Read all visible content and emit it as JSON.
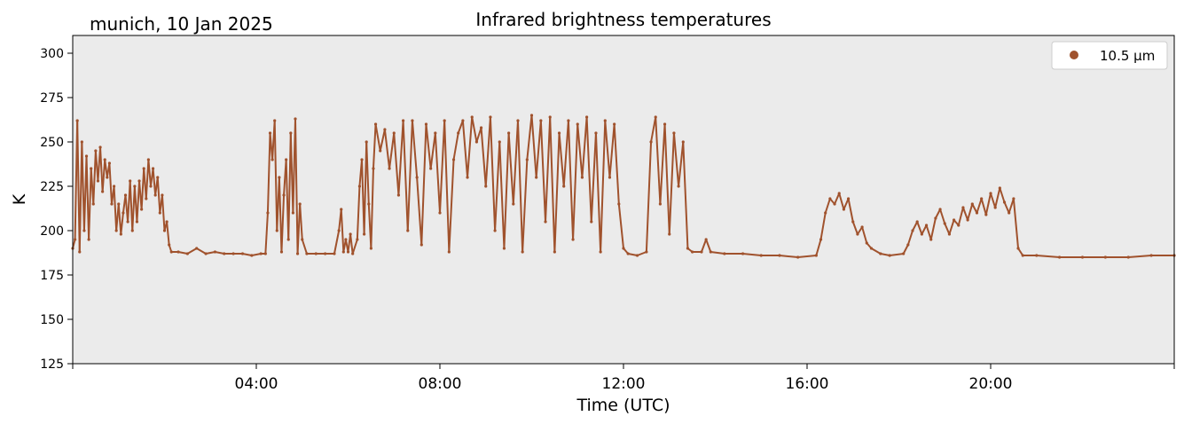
{
  "site_date": "munich, 10 Jan 2025",
  "chart_data": {
    "type": "scatter",
    "title": "Infrared brightness temperatures",
    "xlabel": "Time (UTC)",
    "ylabel": "K",
    "x_unit": "hours UTC",
    "xlim": [
      0,
      24
    ],
    "ylim": [
      125,
      310
    ],
    "x_ticks": [
      4,
      8,
      12,
      16,
      20
    ],
    "x_tick_labels": [
      "04:00",
      "08:00",
      "12:00",
      "16:00",
      "20:00"
    ],
    "y_ticks": [
      125,
      150,
      175,
      200,
      225,
      250,
      275,
      300
    ],
    "y_tick_labels": [
      "125",
      "150",
      "175",
      "200",
      "225",
      "250",
      "275",
      "300"
    ],
    "grid": false,
    "background": "#ebebeb",
    "legend_position": "top-right",
    "series": [
      {
        "name": "10.5 µm",
        "color": "#a0522d",
        "points": [
          [
            0.0,
            190
          ],
          [
            0.05,
            195
          ],
          [
            0.1,
            262
          ],
          [
            0.15,
            188
          ],
          [
            0.2,
            250
          ],
          [
            0.25,
            200
          ],
          [
            0.3,
            242
          ],
          [
            0.35,
            195
          ],
          [
            0.4,
            235
          ],
          [
            0.45,
            215
          ],
          [
            0.5,
            245
          ],
          [
            0.55,
            228
          ],
          [
            0.6,
            247
          ],
          [
            0.65,
            222
          ],
          [
            0.7,
            240
          ],
          [
            0.75,
            230
          ],
          [
            0.8,
            238
          ],
          [
            0.85,
            215
          ],
          [
            0.9,
            225
          ],
          [
            0.95,
            200
          ],
          [
            1.0,
            215
          ],
          [
            1.05,
            198
          ],
          [
            1.1,
            210
          ],
          [
            1.15,
            220
          ],
          [
            1.2,
            205
          ],
          [
            1.25,
            228
          ],
          [
            1.3,
            200
          ],
          [
            1.35,
            225
          ],
          [
            1.4,
            205
          ],
          [
            1.45,
            228
          ],
          [
            1.5,
            212
          ],
          [
            1.55,
            235
          ],
          [
            1.6,
            218
          ],
          [
            1.65,
            240
          ],
          [
            1.7,
            225
          ],
          [
            1.75,
            235
          ],
          [
            1.8,
            220
          ],
          [
            1.85,
            230
          ],
          [
            1.9,
            210
          ],
          [
            1.95,
            220
          ],
          [
            2.0,
            200
          ],
          [
            2.05,
            205
          ],
          [
            2.1,
            192
          ],
          [
            2.15,
            188
          ],
          [
            2.3,
            188
          ],
          [
            2.5,
            187
          ],
          [
            2.7,
            190
          ],
          [
            2.9,
            187
          ],
          [
            3.1,
            188
          ],
          [
            3.3,
            187
          ],
          [
            3.5,
            187
          ],
          [
            3.7,
            187
          ],
          [
            3.9,
            186
          ],
          [
            4.1,
            187
          ],
          [
            4.2,
            187
          ],
          [
            4.25,
            210
          ],
          [
            4.3,
            255
          ],
          [
            4.35,
            240
          ],
          [
            4.4,
            262
          ],
          [
            4.45,
            200
          ],
          [
            4.5,
            230
          ],
          [
            4.55,
            188
          ],
          [
            4.6,
            220
          ],
          [
            4.65,
            240
          ],
          [
            4.7,
            195
          ],
          [
            4.75,
            255
          ],
          [
            4.8,
            210
          ],
          [
            4.85,
            263
          ],
          [
            4.9,
            187
          ],
          [
            4.95,
            215
          ],
          [
            5.0,
            195
          ],
          [
            5.1,
            187
          ],
          [
            5.3,
            187
          ],
          [
            5.5,
            187
          ],
          [
            5.7,
            187
          ],
          [
            5.8,
            200
          ],
          [
            5.85,
            212
          ],
          [
            5.9,
            188
          ],
          [
            5.95,
            195
          ],
          [
            6.0,
            188
          ],
          [
            6.05,
            198
          ],
          [
            6.1,
            187
          ],
          [
            6.2,
            195
          ],
          [
            6.25,
            225
          ],
          [
            6.3,
            240
          ],
          [
            6.35,
            198
          ],
          [
            6.4,
            250
          ],
          [
            6.45,
            215
          ],
          [
            6.5,
            190
          ],
          [
            6.55,
            235
          ],
          [
            6.6,
            260
          ],
          [
            6.7,
            245
          ],
          [
            6.8,
            257
          ],
          [
            6.9,
            235
          ],
          [
            7.0,
            255
          ],
          [
            7.1,
            220
          ],
          [
            7.2,
            262
          ],
          [
            7.3,
            200
          ],
          [
            7.4,
            262
          ],
          [
            7.5,
            230
          ],
          [
            7.6,
            192
          ],
          [
            7.7,
            260
          ],
          [
            7.8,
            235
          ],
          [
            7.9,
            255
          ],
          [
            8.0,
            210
          ],
          [
            8.1,
            262
          ],
          [
            8.2,
            188
          ],
          [
            8.3,
            240
          ],
          [
            8.4,
            255
          ],
          [
            8.5,
            262
          ],
          [
            8.6,
            230
          ],
          [
            8.7,
            264
          ],
          [
            8.8,
            250
          ],
          [
            8.9,
            258
          ],
          [
            9.0,
            225
          ],
          [
            9.1,
            264
          ],
          [
            9.2,
            200
          ],
          [
            9.3,
            250
          ],
          [
            9.4,
            190
          ],
          [
            9.5,
            255
          ],
          [
            9.6,
            215
          ],
          [
            9.7,
            262
          ],
          [
            9.8,
            188
          ],
          [
            9.9,
            240
          ],
          [
            10.0,
            265
          ],
          [
            10.1,
            230
          ],
          [
            10.2,
            262
          ],
          [
            10.3,
            205
          ],
          [
            10.4,
            264
          ],
          [
            10.5,
            188
          ],
          [
            10.6,
            255
          ],
          [
            10.7,
            225
          ],
          [
            10.8,
            262
          ],
          [
            10.9,
            195
          ],
          [
            11.0,
            260
          ],
          [
            11.1,
            230
          ],
          [
            11.2,
            264
          ],
          [
            11.3,
            205
          ],
          [
            11.4,
            255
          ],
          [
            11.5,
            188
          ],
          [
            11.6,
            262
          ],
          [
            11.7,
            230
          ],
          [
            11.8,
            260
          ],
          [
            11.9,
            215
          ],
          [
            12.0,
            190
          ],
          [
            12.1,
            187
          ],
          [
            12.3,
            186
          ],
          [
            12.5,
            188
          ],
          [
            12.6,
            250
          ],
          [
            12.7,
            264
          ],
          [
            12.8,
            215
          ],
          [
            12.9,
            260
          ],
          [
            13.0,
            198
          ],
          [
            13.1,
            255
          ],
          [
            13.2,
            225
          ],
          [
            13.3,
            250
          ],
          [
            13.4,
            190
          ],
          [
            13.5,
            188
          ],
          [
            13.7,
            188
          ],
          [
            13.8,
            195
          ],
          [
            13.9,
            188
          ],
          [
            14.2,
            187
          ],
          [
            14.6,
            187
          ],
          [
            15.0,
            186
          ],
          [
            15.4,
            186
          ],
          [
            15.8,
            185
          ],
          [
            16.2,
            186
          ],
          [
            16.3,
            195
          ],
          [
            16.4,
            210
          ],
          [
            16.5,
            218
          ],
          [
            16.6,
            215
          ],
          [
            16.7,
            221
          ],
          [
            16.8,
            212
          ],
          [
            16.9,
            218
          ],
          [
            17.0,
            205
          ],
          [
            17.1,
            198
          ],
          [
            17.2,
            202
          ],
          [
            17.3,
            193
          ],
          [
            17.4,
            190
          ],
          [
            17.6,
            187
          ],
          [
            17.8,
            186
          ],
          [
            18.1,
            187
          ],
          [
            18.2,
            192
          ],
          [
            18.3,
            200
          ],
          [
            18.4,
            205
          ],
          [
            18.5,
            198
          ],
          [
            18.6,
            203
          ],
          [
            18.7,
            195
          ],
          [
            18.8,
            207
          ],
          [
            18.9,
            212
          ],
          [
            19.0,
            204
          ],
          [
            19.1,
            198
          ],
          [
            19.2,
            206
          ],
          [
            19.3,
            203
          ],
          [
            19.4,
            213
          ],
          [
            19.5,
            206
          ],
          [
            19.6,
            215
          ],
          [
            19.7,
            210
          ],
          [
            19.8,
            218
          ],
          [
            19.9,
            209
          ],
          [
            20.0,
            221
          ],
          [
            20.1,
            213
          ],
          [
            20.2,
            224
          ],
          [
            20.3,
            216
          ],
          [
            20.4,
            210
          ],
          [
            20.5,
            218
          ],
          [
            20.6,
            190
          ],
          [
            20.7,
            186
          ],
          [
            21.0,
            186
          ],
          [
            21.5,
            185
          ],
          [
            22.0,
            185
          ],
          [
            22.5,
            185
          ],
          [
            23.0,
            185
          ],
          [
            23.5,
            186
          ],
          [
            24.0,
            186
          ]
        ]
      }
    ]
  }
}
